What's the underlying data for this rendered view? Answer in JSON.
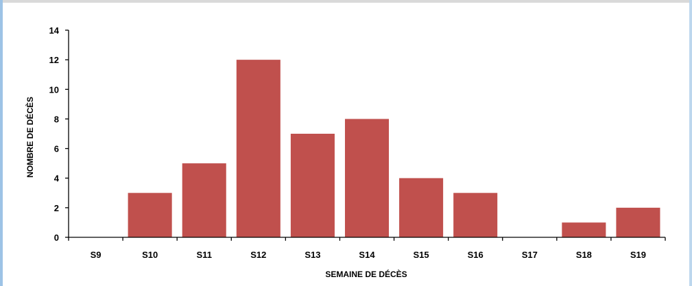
{
  "chart_data": {
    "type": "bar",
    "categories": [
      "S9",
      "S10",
      "S11",
      "S12",
      "S13",
      "S14",
      "S15",
      "S16",
      "S17",
      "S18",
      "S19"
    ],
    "values": [
      0,
      3,
      5,
      12,
      7,
      8,
      4,
      3,
      0,
      1,
      2
    ],
    "title": "",
    "xlabel": "SEMAINE DE DÉCÈS",
    "ylabel": "NOMBRE DE DÉCÈS",
    "ylim": [
      0,
      14
    ],
    "yticks": [
      0,
      2,
      4,
      6,
      8,
      10,
      12,
      14
    ],
    "grid": false,
    "legend": "none",
    "bar_color": "#c0504d",
    "axis_color": "#000000"
  }
}
